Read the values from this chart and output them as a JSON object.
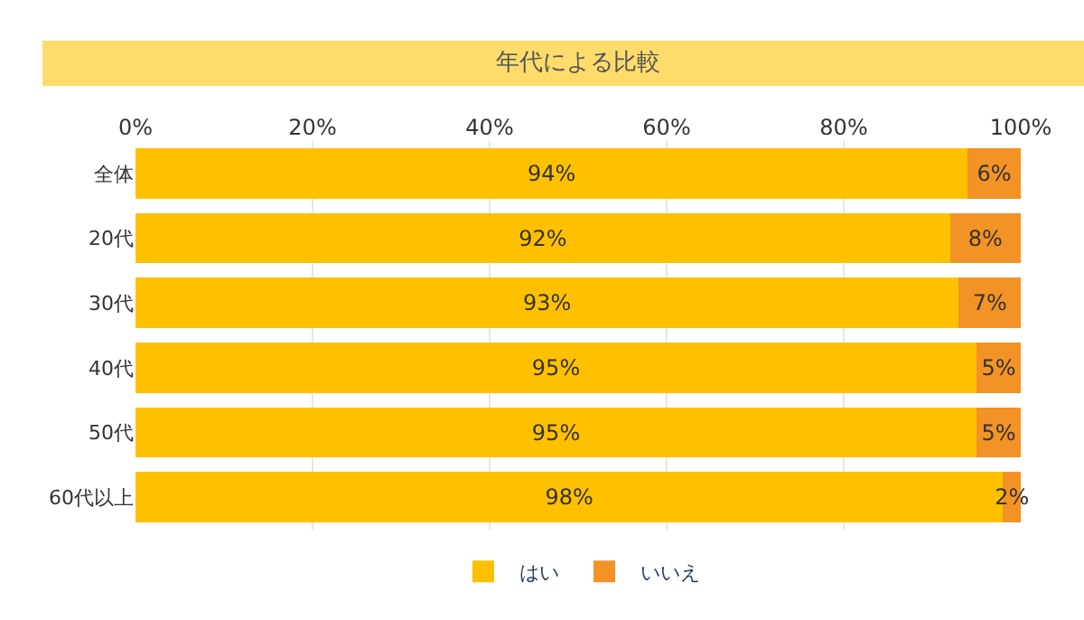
{
  "chart_data": {
    "type": "bar",
    "orientation": "horizontal",
    "stacked": true,
    "title": "年代による比較",
    "categories": [
      "全体",
      "20代",
      "30代",
      "40代",
      "50代",
      "60代以上"
    ],
    "series": [
      {
        "name": "はい",
        "color": "#ffc000",
        "values": [
          94,
          92,
          93,
          95,
          95,
          98
        ],
        "value_labels": [
          "94%",
          "92%",
          "93%",
          "95%",
          "95%",
          "98%"
        ]
      },
      {
        "name": "いいえ",
        "color": "#f39325",
        "values": [
          6,
          8,
          7,
          5,
          5,
          2
        ],
        "value_labels": [
          "6%",
          "8%",
          "7%",
          "5%",
          "5%",
          "2%"
        ]
      }
    ],
    "xlim": [
      0,
      100
    ],
    "xticks": [
      {
        "value": 0,
        "label": "0%"
      },
      {
        "value": 20,
        "label": "20%"
      },
      {
        "value": 40,
        "label": "40%"
      },
      {
        "value": 60,
        "label": "60%"
      },
      {
        "value": 80,
        "label": "80%"
      },
      {
        "value": 100,
        "label": "100%"
      }
    ],
    "grid": "x",
    "legend": "bottom"
  }
}
